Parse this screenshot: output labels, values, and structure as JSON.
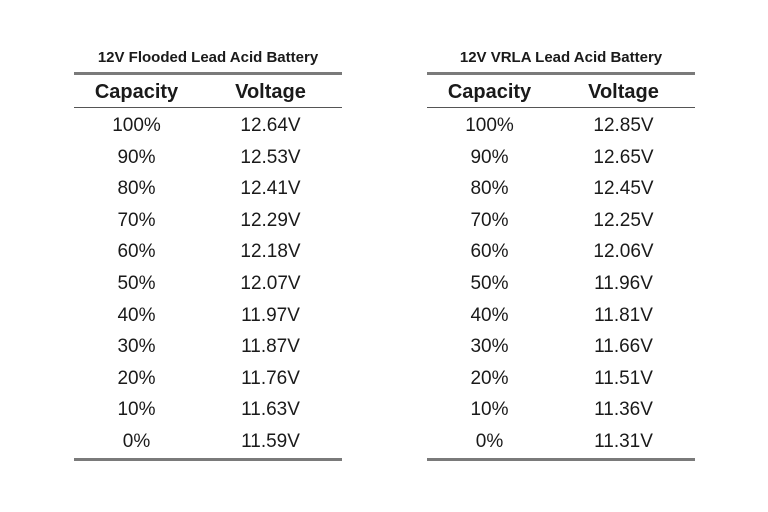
{
  "tables": [
    {
      "title": "12V Flooded Lead Acid Battery",
      "headers": [
        "Capacity",
        "Voltage"
      ],
      "rows": [
        [
          "100%",
          "12.64V"
        ],
        [
          "90%",
          "12.53V"
        ],
        [
          "80%",
          "12.41V"
        ],
        [
          "70%",
          "12.29V"
        ],
        [
          "60%",
          "12.18V"
        ],
        [
          "50%",
          "12.07V"
        ],
        [
          "40%",
          "11.97V"
        ],
        [
          "30%",
          "11.87V"
        ],
        [
          "20%",
          "11.76V"
        ],
        [
          "10%",
          "11.63V"
        ],
        [
          "0%",
          "11.59V"
        ]
      ]
    },
    {
      "title": "12V VRLA Lead Acid Battery",
      "headers": [
        "Capacity",
        "Voltage"
      ],
      "rows": [
        [
          "100%",
          "12.85V"
        ],
        [
          "90%",
          "12.65V"
        ],
        [
          "80%",
          "12.45V"
        ],
        [
          "70%",
          "12.25V"
        ],
        [
          "60%",
          "12.06V"
        ],
        [
          "50%",
          "11.96V"
        ],
        [
          "40%",
          "11.81V"
        ],
        [
          "30%",
          "11.66V"
        ],
        [
          "20%",
          "11.51V"
        ],
        [
          "10%",
          "11.36V"
        ],
        [
          "0%",
          "11.31V"
        ]
      ]
    }
  ]
}
